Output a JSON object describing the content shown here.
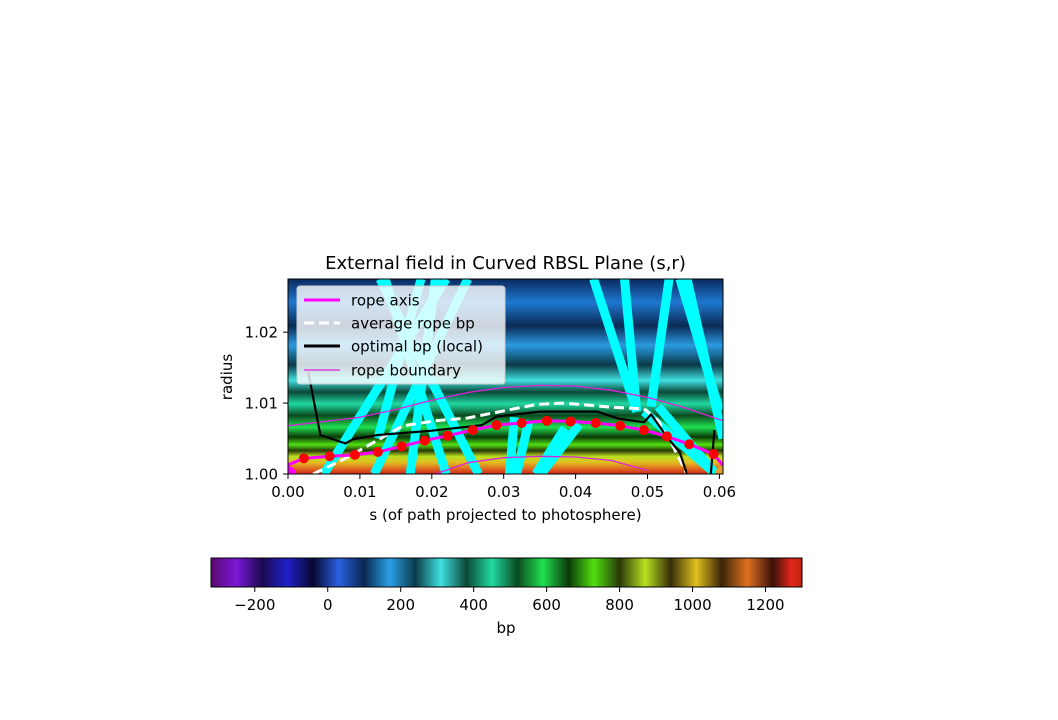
{
  "chart_data": [
    {
      "type": "heatmap",
      "title": "External field in Curved RBSL Plane (s,r)",
      "xlabel": "s (of path projected to photosphere)",
      "ylabel": "radius",
      "xlim": [
        0.0,
        0.0605
      ],
      "ylim": [
        1.0,
        1.0275
      ],
      "xticks": [
        {
          "value": 0.0,
          "label": "0.00"
        },
        {
          "value": 0.01,
          "label": "0.01"
        },
        {
          "value": 0.02,
          "label": "0.02"
        },
        {
          "value": 0.03,
          "label": "0.03"
        },
        {
          "value": 0.04,
          "label": "0.04"
        },
        {
          "value": 0.05,
          "label": "0.05"
        },
        {
          "value": 0.06,
          "label": "0.06"
        }
      ],
      "yticks": [
        {
          "value": 1.0,
          "label": "1.00"
        },
        {
          "value": 1.01,
          "label": "1.01"
        },
        {
          "value": 1.02,
          "label": "1.02"
        }
      ],
      "legend": {
        "placement": "upper-left",
        "entries": [
          {
            "label": "rope axis",
            "color": "#ff00ff",
            "style": "solid-thick"
          },
          {
            "label": "average rope bp",
            "color": "#ffffff",
            "style": "dashed"
          },
          {
            "label": "optimal bp (local)",
            "color": "#000000",
            "style": "solid-thick"
          },
          {
            "label": "rope boundary",
            "color": "#dd22dd",
            "style": "solid-thin"
          }
        ]
      },
      "series": [
        {
          "name": "rope axis",
          "color": "#ff00ff",
          "x": [
            0.0,
            0.0022,
            0.0058,
            0.0093,
            0.0125,
            0.0158,
            0.019,
            0.0222,
            0.0257,
            0.029,
            0.0325,
            0.036,
            0.0393,
            0.0428,
            0.0462,
            0.0495,
            0.0527,
            0.0558,
            0.0592,
            0.0605
          ],
          "y": [
            1.0013,
            1.0022,
            1.0025,
            1.0027,
            1.0031,
            1.0039,
            1.0047,
            1.0054,
            1.0062,
            1.0069,
            1.0072,
            1.0075,
            1.0074,
            1.0072,
            1.0068,
            1.0062,
            1.0053,
            1.0042,
            1.0028,
            1.0012
          ]
        },
        {
          "name": "average rope bp",
          "color": "#ffffff",
          "x": [
            0.0035,
            0.008,
            0.0125,
            0.016,
            0.0205,
            0.025,
            0.0295,
            0.0345,
            0.038,
            0.042,
            0.045,
            0.0495,
            0.0515,
            0.0535,
            0.0555
          ],
          "y": [
            1.0,
            1.0022,
            1.0048,
            1.0068,
            1.0075,
            1.0079,
            1.0088,
            1.0098,
            1.01,
            1.0097,
            1.0094,
            1.0092,
            1.0075,
            1.004,
            1.0
          ]
        },
        {
          "name": "optimal bp (local)",
          "color": "#000000",
          "x": [
            0.0028,
            0.0045,
            0.008,
            0.009,
            0.0125,
            0.02,
            0.027,
            0.029,
            0.035,
            0.043,
            0.046,
            0.0495,
            0.0505,
            0.0525,
            0.0545,
            0.0555
          ],
          "y": [
            1.0145,
            1.0055,
            1.0043,
            1.0049,
            1.0055,
            1.0061,
            1.0069,
            1.0081,
            1.0088,
            1.0088,
            1.0078,
            1.0073,
            1.0084,
            1.0055,
            1.003,
            1.0
          ]
        },
        {
          "name": "optimal bp (local) right branch",
          "color": "#000000",
          "x": [
            0.0588,
            0.0591,
            0.0593
          ],
          "y": [
            1.0,
            1.0035,
            1.0062
          ]
        },
        {
          "name": "rope boundary",
          "color": "#dd22dd",
          "x": [
            0.0,
            0.005,
            0.01,
            0.015,
            0.02,
            0.025,
            0.03,
            0.035,
            0.04,
            0.045,
            0.05,
            0.055,
            0.0605
          ],
          "y": [
            1.0068,
            1.0074,
            1.008,
            1.0091,
            1.0104,
            1.0115,
            1.0122,
            1.0125,
            1.0124,
            1.0118,
            1.0108,
            1.0094,
            1.0075
          ]
        },
        {
          "name": "rope boundary lower",
          "color": "#dd22dd",
          "x": [
            0.0205,
            0.025,
            0.03,
            0.035,
            0.04,
            0.045,
            0.05
          ],
          "y": [
            1.0,
            1.0016,
            1.0023,
            1.0025,
            1.0024,
            1.0019,
            1.0005
          ]
        }
      ],
      "markers": {
        "name": "rope axis points",
        "color": "#ff0000",
        "x": [
          0.0022,
          0.0058,
          0.0093,
          0.0125,
          0.0158,
          0.019,
          0.0222,
          0.0257,
          0.029,
          0.0325,
          0.036,
          0.0393,
          0.0428,
          0.0462,
          0.0495,
          0.0527,
          0.0558,
          0.0592
        ],
        "y": [
          1.0022,
          1.0025,
          1.0027,
          1.0031,
          1.0039,
          1.0047,
          1.0054,
          1.0062,
          1.0069,
          1.0072,
          1.0075,
          1.0074,
          1.0072,
          1.0068,
          1.0062,
          1.0053,
          1.0042,
          1.0028
        ]
      },
      "footpoints": [
        {
          "x": 0.0,
          "y": 1.0,
          "color": "#ff00ff"
        },
        {
          "x": 0.0605,
          "y": 1.0,
          "color": "#e0a030"
        }
      ],
      "field_lines": {
        "color": "#00ffff",
        "segments": [
          [
            [
              0.005,
              1.0
            ],
            [
              0.022,
              1.0275
            ]
          ],
          [
            [
              0.012,
              1.0
            ],
            [
              0.025,
              1.0275
            ]
          ],
          [
            [
              0.0125,
              1.005
            ],
            [
              0.0185,
              1.0275
            ]
          ],
          [
            [
              0.017,
              1.0
            ],
            [
              0.0205,
              1.0275
            ]
          ],
          [
            [
              0.022,
              1.0
            ],
            [
              0.0135,
              1.0275
            ]
          ],
          [
            [
              0.0265,
              1.0
            ],
            [
              0.0128,
              1.0275
            ]
          ],
          [
            [
              0.0308,
              1.0
            ],
            [
              0.0315,
              1.008
            ]
          ],
          [
            [
              0.0318,
              1.0
            ],
            [
              0.0335,
              1.0075
            ]
          ],
          [
            [
              0.0345,
              1.0
            ],
            [
              0.0385,
              1.0065
            ]
          ],
          [
            [
              0.0352,
              1.0
            ],
            [
              0.0405,
              1.007
            ]
          ],
          [
            [
              0.0485,
              1.0088
            ],
            [
              0.0425,
              1.0275
            ]
          ],
          [
            [
              0.0485,
              1.0088
            ],
            [
              0.0468,
              1.0275
            ]
          ],
          [
            [
              0.0495,
              1.0088
            ],
            [
              0.0595,
              1.0
            ]
          ],
          [
            [
              0.0505,
              1.0095
            ],
            [
              0.053,
              1.0275
            ]
          ],
          [
            [
              0.0515,
              1.0095
            ],
            [
              0.0595,
              1.0
            ]
          ],
          [
            [
              0.0545,
              1.0275
            ],
            [
              0.06,
              1.009
            ]
          ],
          [
            [
              0.0555,
              1.0275
            ],
            [
              0.0605,
              1.005
            ]
          ]
        ]
      }
    },
    {
      "type": "colorbar",
      "label": "bp",
      "range": [
        -320,
        1300
      ],
      "ticks": [
        {
          "value": -200,
          "label": "−200"
        },
        {
          "value": 0,
          "label": "0"
        },
        {
          "value": 200,
          "label": "200"
        },
        {
          "value": 400,
          "label": "400"
        },
        {
          "value": 600,
          "label": "600"
        },
        {
          "value": 800,
          "label": "800"
        },
        {
          "value": 1000,
          "label": "1000"
        },
        {
          "value": 1200,
          "label": "1200"
        }
      ],
      "colormap": [
        {
          "v": -320,
          "c": "#5a0a6e"
        },
        {
          "v": -250,
          "c": "#7a18d8"
        },
        {
          "v": -180,
          "c": "#1a0a50"
        },
        {
          "v": -110,
          "c": "#2020c8"
        },
        {
          "v": -40,
          "c": "#080830"
        },
        {
          "v": 30,
          "c": "#2a60e0"
        },
        {
          "v": 100,
          "c": "#0a2850"
        },
        {
          "v": 170,
          "c": "#2aa0e8"
        },
        {
          "v": 240,
          "c": "#0a3a48"
        },
        {
          "v": 310,
          "c": "#40e0e0"
        },
        {
          "v": 380,
          "c": "#0a4838"
        },
        {
          "v": 450,
          "c": "#20d8a0"
        },
        {
          "v": 520,
          "c": "#0a4a20"
        },
        {
          "v": 590,
          "c": "#20e050"
        },
        {
          "v": 660,
          "c": "#0a3a08"
        },
        {
          "v": 730,
          "c": "#50e010"
        },
        {
          "v": 800,
          "c": "#283808"
        },
        {
          "v": 870,
          "c": "#b8e020"
        },
        {
          "v": 940,
          "c": "#382e08"
        },
        {
          "v": 1010,
          "c": "#e0c020"
        },
        {
          "v": 1080,
          "c": "#3a2408"
        },
        {
          "v": 1150,
          "c": "#e07020"
        },
        {
          "v": 1220,
          "c": "#3a1008"
        },
        {
          "v": 1270,
          "c": "#e02818"
        },
        {
          "v": 1300,
          "c": "#c02010"
        }
      ]
    }
  ]
}
